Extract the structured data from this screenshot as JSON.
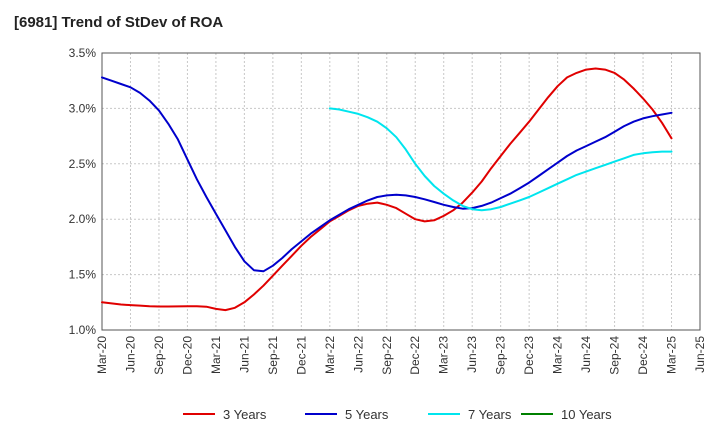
{
  "chart_data": {
    "type": "line",
    "title": "[6981]  Trend of StDev of ROA",
    "xlabel": "",
    "ylabel": "",
    "x_ticks": [
      "Mar-20",
      "Jun-20",
      "Sep-20",
      "Dec-20",
      "Mar-21",
      "Jun-21",
      "Sep-21",
      "Dec-21",
      "Mar-22",
      "Jun-22",
      "Sep-22",
      "Dec-22",
      "Mar-23",
      "Jun-23",
      "Sep-23",
      "Dec-23",
      "Mar-24",
      "Jun-24",
      "Sep-24",
      "Dec-24",
      "Mar-25",
      "Jun-25"
    ],
    "y_ticks": [
      "1.0%",
      "1.5%",
      "2.0%",
      "2.5%",
      "3.0%",
      "3.5%"
    ],
    "ylim": [
      1.0,
      3.5
    ],
    "grid": true,
    "legend_position": "bottom",
    "series": [
      {
        "name": "3 Years",
        "color": "#e00000",
        "x": [
          "Mar-20",
          "Apr-20",
          "May-20",
          "Jun-20",
          "Jul-20",
          "Aug-20",
          "Sep-20",
          "Oct-20",
          "Nov-20",
          "Dec-20",
          "Jan-21",
          "Feb-21",
          "Mar-21",
          "Apr-21",
          "May-21",
          "Jun-21",
          "Jul-21",
          "Aug-21",
          "Sep-21",
          "Oct-21",
          "Nov-21",
          "Dec-21",
          "Jan-22",
          "Feb-22",
          "Mar-22",
          "Apr-22",
          "May-22",
          "Jun-22",
          "Jul-22",
          "Aug-22",
          "Sep-22",
          "Oct-22",
          "Nov-22",
          "Dec-22",
          "Jan-23",
          "Feb-23",
          "Mar-23",
          "Apr-23",
          "May-23",
          "Jun-23",
          "Jul-23",
          "Aug-23",
          "Sep-23",
          "Oct-23",
          "Nov-23",
          "Dec-23",
          "Jan-24",
          "Feb-24",
          "Mar-24",
          "Apr-24",
          "May-24",
          "Jun-24",
          "Jul-24",
          "Aug-24",
          "Sep-24",
          "Oct-24",
          "Nov-24",
          "Dec-24",
          "Jan-25",
          "Feb-25",
          "Mar-25"
        ],
        "values": [
          1.25,
          1.24,
          1.23,
          1.225,
          1.22,
          1.215,
          1.212,
          1.212,
          1.213,
          1.215,
          1.215,
          1.21,
          1.19,
          1.18,
          1.2,
          1.25,
          1.32,
          1.4,
          1.49,
          1.58,
          1.67,
          1.76,
          1.84,
          1.91,
          1.98,
          2.03,
          2.08,
          2.12,
          2.14,
          2.15,
          2.13,
          2.1,
          2.05,
          2.0,
          1.98,
          1.99,
          2.03,
          2.08,
          2.15,
          2.24,
          2.34,
          2.46,
          2.57,
          2.68,
          2.78,
          2.88,
          2.99,
          3.1,
          3.2,
          3.28,
          3.32,
          3.35,
          3.36,
          3.35,
          3.32,
          3.26,
          3.18,
          3.09,
          2.99,
          2.87,
          2.73
        ]
      },
      {
        "name": "5 Years",
        "color": "#0000cc",
        "x": [
          "Mar-20",
          "Apr-20",
          "May-20",
          "Jun-20",
          "Jul-20",
          "Aug-20",
          "Sep-20",
          "Oct-20",
          "Nov-20",
          "Dec-20",
          "Jan-21",
          "Feb-21",
          "Mar-21",
          "Apr-21",
          "May-21",
          "Jun-21",
          "Jul-21",
          "Aug-21",
          "Sep-21",
          "Oct-21",
          "Nov-21",
          "Dec-21",
          "Jan-22",
          "Feb-22",
          "Mar-22",
          "Apr-22",
          "May-22",
          "Jun-22",
          "Jul-22",
          "Aug-22",
          "Sep-22",
          "Oct-22",
          "Nov-22",
          "Dec-22",
          "Jan-23",
          "Feb-23",
          "Mar-23",
          "Apr-23",
          "May-23",
          "Jun-23",
          "Jul-23",
          "Aug-23",
          "Sep-23",
          "Oct-23",
          "Nov-23",
          "Dec-23",
          "Jan-24",
          "Feb-24",
          "Mar-24",
          "Apr-24",
          "May-24",
          "Jun-24",
          "Jul-24",
          "Aug-24",
          "Sep-24",
          "Oct-24",
          "Nov-24",
          "Dec-24",
          "Jan-25",
          "Feb-25",
          "Mar-25"
        ],
        "values": [
          3.28,
          3.25,
          3.22,
          3.19,
          3.14,
          3.07,
          2.98,
          2.86,
          2.72,
          2.54,
          2.36,
          2.2,
          2.05,
          1.9,
          1.75,
          1.62,
          1.54,
          1.53,
          1.58,
          1.65,
          1.73,
          1.8,
          1.87,
          1.93,
          1.99,
          2.04,
          2.09,
          2.13,
          2.17,
          2.2,
          2.215,
          2.22,
          2.215,
          2.2,
          2.18,
          2.155,
          2.13,
          2.11,
          2.095,
          2.1,
          2.12,
          2.15,
          2.19,
          2.23,
          2.28,
          2.33,
          2.39,
          2.45,
          2.51,
          2.57,
          2.62,
          2.66,
          2.7,
          2.74,
          2.79,
          2.84,
          2.88,
          2.91,
          2.93,
          2.945,
          2.96
        ]
      },
      {
        "name": "7 Years",
        "color": "#00e5ee",
        "x": [
          "Mar-22",
          "Apr-22",
          "May-22",
          "Jun-22",
          "Jul-22",
          "Aug-22",
          "Sep-22",
          "Oct-22",
          "Nov-22",
          "Dec-22",
          "Jan-23",
          "Feb-23",
          "Mar-23",
          "Apr-23",
          "May-23",
          "Jun-23",
          "Jul-23",
          "Aug-23",
          "Sep-23",
          "Oct-23",
          "Nov-23",
          "Dec-23",
          "Jan-24",
          "Feb-24",
          "Mar-24",
          "Apr-24",
          "May-24",
          "Jun-24",
          "Jul-24",
          "Aug-24",
          "Sep-24",
          "Oct-24",
          "Nov-24",
          "Dec-24",
          "Jan-25",
          "Feb-25",
          "Mar-25"
        ],
        "values": [
          3.0,
          2.99,
          2.97,
          2.95,
          2.92,
          2.88,
          2.82,
          2.74,
          2.63,
          2.5,
          2.39,
          2.3,
          2.23,
          2.17,
          2.12,
          2.09,
          2.08,
          2.09,
          2.11,
          2.14,
          2.17,
          2.2,
          2.24,
          2.28,
          2.32,
          2.36,
          2.4,
          2.43,
          2.46,
          2.49,
          2.52,
          2.55,
          2.58,
          2.595,
          2.605,
          2.61,
          2.61
        ]
      },
      {
        "name": "10 Years",
        "color": "#008000",
        "x": [],
        "values": []
      }
    ]
  }
}
